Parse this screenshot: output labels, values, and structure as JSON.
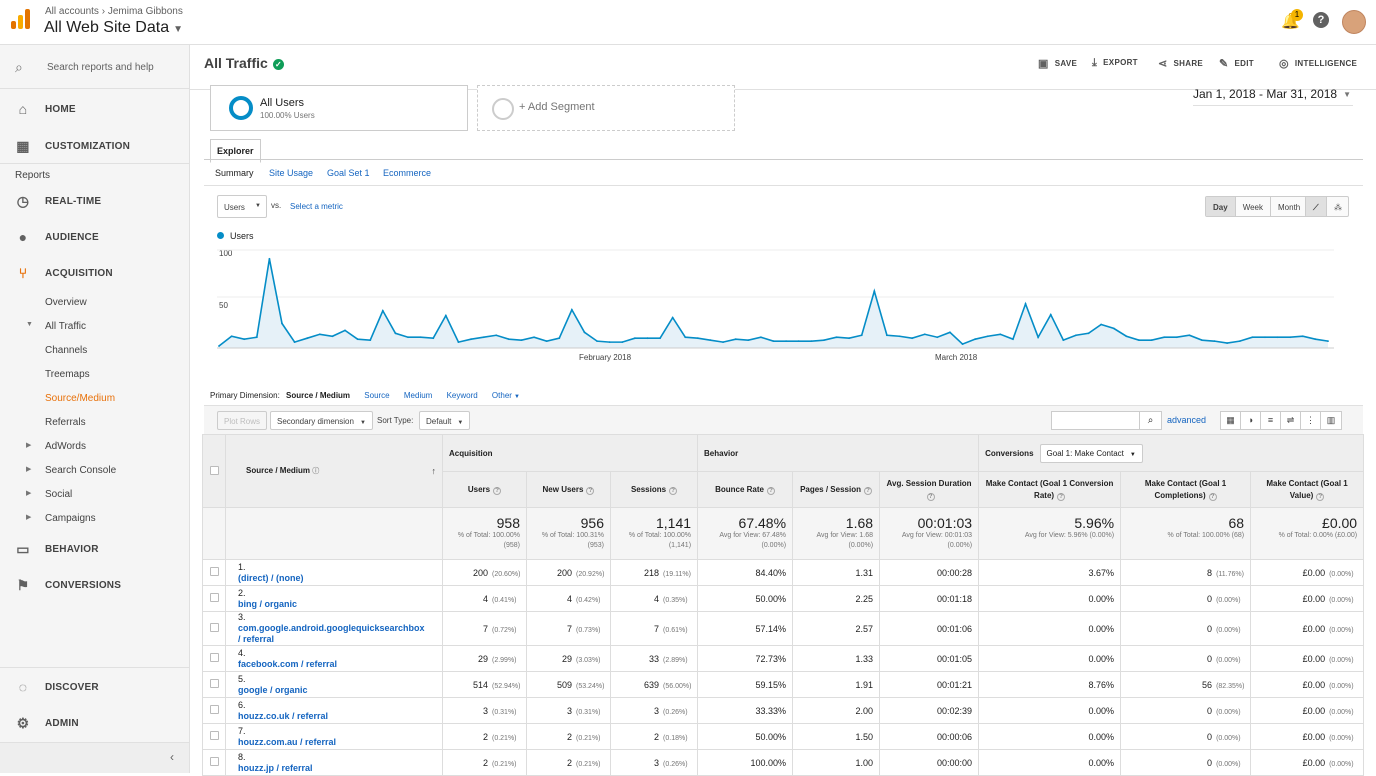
{
  "topbar": {
    "breadcrumb_accounts": "All accounts",
    "breadcrumb_sep": "›",
    "breadcrumb_account": "Jemima Gibbons",
    "view_name": "All Web Site Data",
    "notification_count": "1"
  },
  "sidebar": {
    "search_placeholder": "Search reports and help",
    "home": "HOME",
    "customization": "CUSTOMIZATION",
    "reports_label": "Reports",
    "realtime": "REAL-TIME",
    "audience": "AUDIENCE",
    "acquisition": "ACQUISITION",
    "acq_items": [
      "Overview",
      "All Traffic",
      "Channels",
      "Treemaps",
      "Source/Medium",
      "Referrals",
      "AdWords",
      "Search Console",
      "Social",
      "Campaigns"
    ],
    "behavior": "BEHAVIOR",
    "conversions": "CONVERSIONS",
    "discover": "DISCOVER",
    "admin": "ADMIN"
  },
  "page": {
    "title": "All Traffic",
    "actions": [
      "SAVE",
      "EXPORT",
      "SHARE",
      "EDIT",
      "INTELLIGENCE"
    ]
  },
  "segments": {
    "all_users": "All Users",
    "all_users_sub": "100.00% Users",
    "add": "+ Add Segment"
  },
  "date_range": "Jan 1, 2018 - Mar 31, 2018",
  "explorer": {
    "tab": "Explorer",
    "subtabs": [
      "Summary",
      "Site Usage",
      "Goal Set 1",
      "Ecommerce"
    ]
  },
  "chart_controls": {
    "metric": "Users",
    "vs": "vs.",
    "select_metric": "Select a metric",
    "granularity": [
      "Day",
      "Week",
      "Month"
    ],
    "active_granularity": "Day"
  },
  "chart_data": {
    "type": "area",
    "series": [
      {
        "name": "Users",
        "color": "#058dc7",
        "values": [
          2,
          12,
          9,
          11,
          91,
          25,
          6,
          10,
          14,
          12,
          18,
          9,
          8,
          38,
          15,
          11,
          11,
          10,
          33,
          6,
          9,
          11,
          13,
          9,
          8,
          11,
          7,
          10,
          39,
          16,
          7,
          6,
          6,
          10,
          10,
          10,
          31,
          11,
          10,
          8,
          6,
          9,
          8,
          11,
          7,
          7,
          7,
          7,
          8,
          11,
          10,
          13,
          58,
          13,
          12,
          10,
          14,
          11,
          16,
          4,
          9,
          12,
          14,
          9,
          45,
          11,
          34,
          8,
          13,
          15,
          24,
          20,
          12,
          8,
          8,
          11,
          11,
          13,
          8,
          7,
          5,
          7,
          11,
          11,
          11,
          11,
          12,
          9,
          7
        ]
      }
    ],
    "y_ticks": [
      "100",
      "50"
    ],
    "ylim": [
      0,
      100
    ],
    "x_tick_labels": [
      "February 2018",
      "March 2018"
    ],
    "legend": "top-left"
  },
  "dimension": {
    "label": "Primary Dimension:",
    "current": "Source / Medium",
    "options": [
      "Source",
      "Medium",
      "Keyword",
      "Other"
    ]
  },
  "table_controls": {
    "plot_rows": "Plot Rows",
    "secondary": "Secondary dimension",
    "sort_type_label": "Sort Type:",
    "sort_type": "Default",
    "advanced": "advanced"
  },
  "table": {
    "groups": {
      "acquisition": "Acquisition",
      "behavior": "Behavior",
      "conversions": "Conversions",
      "goal": "Goal 1: Make Contact"
    },
    "dim_header": "Source / Medium",
    "columns": [
      "Users",
      "New Users",
      "Sessions",
      "Bounce Rate",
      "Pages / Session",
      "Avg. Session Duration",
      "Make Contact (Goal 1 Conversion Rate)",
      "Make Contact (Goal 1 Completions)",
      "Make Contact (Goal 1 Value)"
    ],
    "totals": [
      {
        "big": "958",
        "sm": "% of Total: 100.00% (958)"
      },
      {
        "big": "956",
        "sm": "% of Total: 100.31% (953)"
      },
      {
        "big": "1,141",
        "sm": "% of Total: 100.00% (1,141)"
      },
      {
        "big": "67.48%",
        "sm": "Avg for View: 67.48% (0.00%)"
      },
      {
        "big": "1.68",
        "sm": "Avg for View: 1.68 (0.00%)"
      },
      {
        "big": "00:01:03",
        "sm": "Avg for View: 00:01:03 (0.00%)"
      },
      {
        "big": "5.96%",
        "sm": "Avg for View: 5.96% (0.00%)"
      },
      {
        "big": "68",
        "sm": "% of Total: 100.00% (68)"
      },
      {
        "big": "£0.00",
        "sm": "% of Total: 0.00% (£0.00)"
      }
    ],
    "rows": [
      {
        "n": "1.",
        "src": "(direct) / (none)",
        "users": "200",
        "users_p": "(20.60%)",
        "new": "200",
        "new_p": "(20.92%)",
        "sess": "218",
        "sess_p": "(19.11%)",
        "br": "84.40%",
        "pps": "1.31",
        "dur": "00:00:28",
        "cr": "3.67%",
        "comp": "8",
        "comp_p": "(11.76%)",
        "val": "£0.00",
        "val_p": "(0.00%)"
      },
      {
        "n": "2.",
        "src": "bing / organic",
        "users": "4",
        "users_p": "(0.41%)",
        "new": "4",
        "new_p": "(0.42%)",
        "sess": "4",
        "sess_p": "(0.35%)",
        "br": "50.00%",
        "pps": "2.25",
        "dur": "00:01:18",
        "cr": "0.00%",
        "comp": "0",
        "comp_p": "(0.00%)",
        "val": "£0.00",
        "val_p": "(0.00%)"
      },
      {
        "n": "3.",
        "src": "com.google.android.googlequicksearchbox / referral",
        "users": "7",
        "users_p": "(0.72%)",
        "new": "7",
        "new_p": "(0.73%)",
        "sess": "7",
        "sess_p": "(0.61%)",
        "br": "57.14%",
        "pps": "2.57",
        "dur": "00:01:06",
        "cr": "0.00%",
        "comp": "0",
        "comp_p": "(0.00%)",
        "val": "£0.00",
        "val_p": "(0.00%)"
      },
      {
        "n": "4.",
        "src": "facebook.com / referral",
        "users": "29",
        "users_p": "(2.99%)",
        "new": "29",
        "new_p": "(3.03%)",
        "sess": "33",
        "sess_p": "(2.89%)",
        "br": "72.73%",
        "pps": "1.33",
        "dur": "00:01:05",
        "cr": "0.00%",
        "comp": "0",
        "comp_p": "(0.00%)",
        "val": "£0.00",
        "val_p": "(0.00%)"
      },
      {
        "n": "5.",
        "src": "google / organic",
        "users": "514",
        "users_p": "(52.94%)",
        "new": "509",
        "new_p": "(53.24%)",
        "sess": "639",
        "sess_p": "(56.00%)",
        "br": "59.15%",
        "pps": "1.91",
        "dur": "00:01:21",
        "cr": "8.76%",
        "comp": "56",
        "comp_p": "(82.35%)",
        "val": "£0.00",
        "val_p": "(0.00%)"
      },
      {
        "n": "6.",
        "src": "houzz.co.uk / referral",
        "users": "3",
        "users_p": "(0.31%)",
        "new": "3",
        "new_p": "(0.31%)",
        "sess": "3",
        "sess_p": "(0.26%)",
        "br": "33.33%",
        "pps": "2.00",
        "dur": "00:02:39",
        "cr": "0.00%",
        "comp": "0",
        "comp_p": "(0.00%)",
        "val": "£0.00",
        "val_p": "(0.00%)"
      },
      {
        "n": "7.",
        "src": "houzz.com.au / referral",
        "users": "2",
        "users_p": "(0.21%)",
        "new": "2",
        "new_p": "(0.21%)",
        "sess": "2",
        "sess_p": "(0.18%)",
        "br": "50.00%",
        "pps": "1.50",
        "dur": "00:00:06",
        "cr": "0.00%",
        "comp": "0",
        "comp_p": "(0.00%)",
        "val": "£0.00",
        "val_p": "(0.00%)"
      },
      {
        "n": "8.",
        "src": "houzz.jp / referral",
        "users": "2",
        "users_p": "(0.21%)",
        "new": "2",
        "new_p": "(0.21%)",
        "sess": "3",
        "sess_p": "(0.26%)",
        "br": "100.00%",
        "pps": "1.00",
        "dur": "00:00:00",
        "cr": "0.00%",
        "comp": "0",
        "comp_p": "(0.00%)",
        "val": "£0.00",
        "val_p": "(0.00%)"
      }
    ]
  },
  "colors": {
    "accent": "#058dc7",
    "active_nav": "#e8710a",
    "link": "#1565c0",
    "ok": "#0f9d58"
  }
}
